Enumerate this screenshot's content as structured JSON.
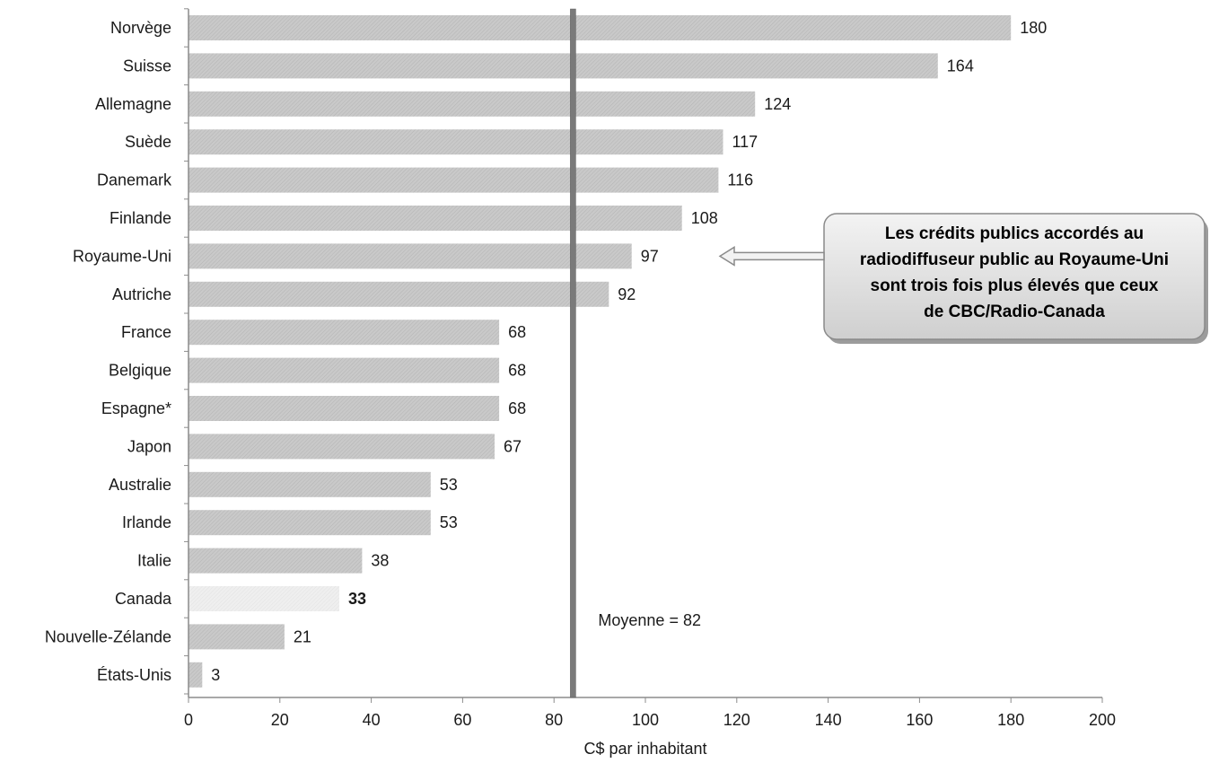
{
  "chart_data": {
    "type": "bar",
    "orientation": "horizontal",
    "categories": [
      "Norvège",
      "Suisse",
      "Allemagne",
      "Suède",
      "Danemark",
      "Finlande",
      "Royaume-Uni",
      "Autriche",
      "France",
      "Belgique",
      "Espagne*",
      "Japon",
      "Australie",
      "Irlande",
      "Italie",
      "Canada",
      "Nouvelle-Zélande",
      "États-Unis"
    ],
    "values": [
      180,
      164,
      124,
      117,
      116,
      108,
      97,
      92,
      68,
      68,
      68,
      67,
      53,
      53,
      38,
      33,
      21,
      3
    ],
    "value_labels": [
      "180",
      "164",
      "124",
      "117",
      "116",
      "108",
      "97",
      "92",
      "68",
      "68",
      "68",
      "67",
      "53",
      "53",
      "38",
      "33",
      "21",
      "3"
    ],
    "highlight_category": "Canada",
    "xlabel": "C$ par inhabitant",
    "xlim": [
      0,
      200
    ],
    "xticks": [
      0,
      20,
      40,
      60,
      80,
      100,
      120,
      140,
      160,
      180,
      200
    ],
    "reference_line": {
      "value": 82,
      "label": "Moyenne = 82"
    },
    "grid": false,
    "bar_color": "#c6c6c6",
    "highlight_color": "#ececec",
    "reference_line_color": "#7a7a7a",
    "callout": {
      "lines": [
        "Les crédits publics accordés au",
        "radiodiffuseur public au Royaume-Uni",
        "sont trois fois plus élevés que ceux",
        "de CBC/Radio-Canada"
      ],
      "points_to": "Royaume-Uni"
    }
  }
}
